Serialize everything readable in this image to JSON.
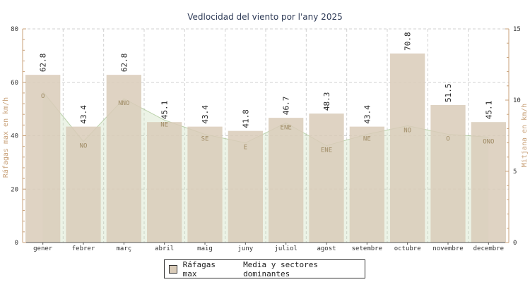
{
  "chart_data": {
    "type": "bar",
    "title": "Vedlocidad del viento por l'any 2025",
    "categories": [
      "gener",
      "febrer",
      "març",
      "abril",
      "maig",
      "juny",
      "juliol",
      "agost",
      "setembre",
      "octubre",
      "novembre",
      "decembre"
    ],
    "series": [
      {
        "name": "Ráfagas max",
        "type": "bar",
        "axis": "left",
        "values": [
          62.8,
          43.4,
          62.8,
          45.1,
          43.4,
          41.8,
          46.7,
          48.3,
          43.4,
          70.8,
          51.5,
          45.1
        ]
      },
      {
        "name": "Media y sectores dominantes",
        "type": "area",
        "axis": "right",
        "values": [
          10.6,
          7.1,
          10.1,
          8.6,
          7.6,
          7.0,
          8.4,
          6.8,
          7.6,
          8.2,
          7.6,
          7.4
        ],
        "labels": [
          "O",
          "NO",
          "NNO",
          "NE",
          "SE",
          "E",
          "ENE",
          "ENE",
          "NE",
          "NO",
          "O",
          "ONO"
        ]
      }
    ],
    "ylabel": "Ráfagas max en km/h",
    "y2label": "Mitjana en km/h",
    "ylim": [
      0,
      80
    ],
    "y2lim": [
      0,
      15
    ],
    "yticks": [
      0,
      20,
      40,
      60,
      80
    ],
    "y2ticks": [
      0,
      5,
      10,
      15
    ],
    "grid": true,
    "legend": "bottom",
    "colors": {
      "bar": "#d9cbb8",
      "area": "#c8ddb8",
      "text_axis": "#c9a27a",
      "sector": "#a08c66"
    }
  }
}
